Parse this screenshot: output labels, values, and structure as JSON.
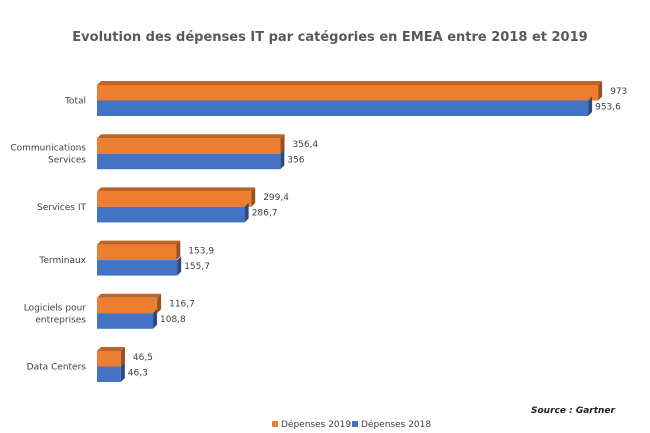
{
  "chart_data": {
    "type": "bar",
    "orientation": "horizontal",
    "style": "3d-clustered",
    "title": "Evolution des dépenses IT par catégories en EMEA entre 2018 et 2019",
    "xlabel": "",
    "ylabel": "",
    "grid": false,
    "xaxis_visible": false,
    "categories": [
      "Total",
      "Communications Services",
      "Services IT",
      "Terminaux",
      "Logiciels pour entreprises",
      "Data Centers"
    ],
    "category_lines": [
      [
        "Total"
      ],
      [
        "Communications",
        "Services"
      ],
      [
        "Services IT"
      ],
      [
        "Terminaux"
      ],
      [
        "Logiciels pour",
        "entreprises"
      ],
      [
        "Data Centers"
      ]
    ],
    "series": [
      {
        "name": "Dépenses 2019",
        "color": "#ED7D31",
        "values": [
          973,
          356.4,
          299.4,
          153.9,
          116.7,
          46.5
        ],
        "labels": [
          "973",
          "356,4",
          "299,4",
          "153,9",
          "116,7",
          "46,5"
        ]
      },
      {
        "name": "Dépenses 2018",
        "color": "#4472C4",
        "values": [
          953.6,
          356,
          286.7,
          155.7,
          108.8,
          46.3
        ],
        "labels": [
          "953,6",
          "356",
          "286,7",
          "155,7",
          "108,8",
          "46,3"
        ]
      }
    ],
    "xlim": [
      0,
      1000
    ],
    "legend_position": "bottom",
    "annotation": "Source : Gartner"
  }
}
